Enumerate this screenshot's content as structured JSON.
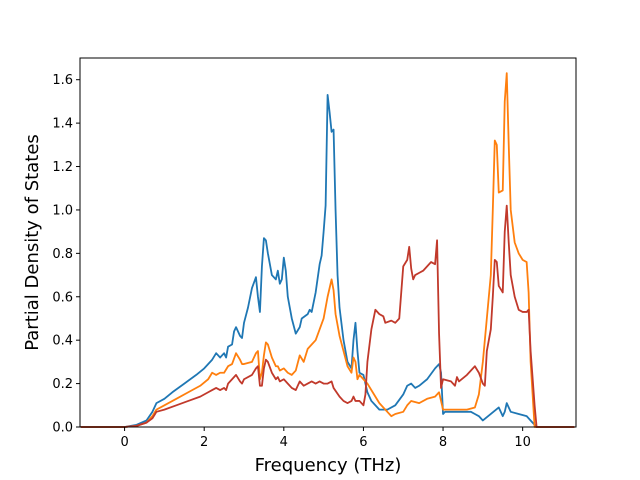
{
  "chart_data": {
    "type": "line",
    "title": "",
    "xlabel": "Frequency (THz)",
    "ylabel": "Partial Density of States",
    "xlim": [
      -1.12,
      11.34
    ],
    "ylim": [
      0.0,
      1.7
    ],
    "xticks": [
      0,
      2,
      4,
      6,
      8,
      10
    ],
    "yticks": [
      0.0,
      0.2,
      0.4,
      0.6,
      0.8,
      1.0,
      1.2,
      1.4,
      1.6
    ],
    "xtick_labels": [
      "0",
      "2",
      "4",
      "6",
      "8",
      "10"
    ],
    "ytick_labels": [
      "0.0",
      "0.2",
      "0.4",
      "0.6",
      "0.8",
      "1.0",
      "1.2",
      "1.4",
      "1.6"
    ],
    "grid": false,
    "legend": "none",
    "series": [
      {
        "color": "#1f77b4",
        "points": [
          [
            -1.1,
            0
          ],
          [
            0,
            0
          ],
          [
            0.3,
            0.01
          ],
          [
            0.55,
            0.03
          ],
          [
            0.7,
            0.07
          ],
          [
            0.8,
            0.11
          ],
          [
            1.0,
            0.13
          ],
          [
            1.2,
            0.16
          ],
          [
            1.5,
            0.2
          ],
          [
            1.8,
            0.24
          ],
          [
            2.0,
            0.27
          ],
          [
            2.2,
            0.31
          ],
          [
            2.3,
            0.34
          ],
          [
            2.4,
            0.32
          ],
          [
            2.5,
            0.34
          ],
          [
            2.55,
            0.32
          ],
          [
            2.6,
            0.37
          ],
          [
            2.7,
            0.38
          ],
          [
            2.75,
            0.44
          ],
          [
            2.8,
            0.46
          ],
          [
            2.9,
            0.42
          ],
          [
            2.95,
            0.41
          ],
          [
            3.0,
            0.48
          ],
          [
            3.1,
            0.55
          ],
          [
            3.2,
            0.64
          ],
          [
            3.3,
            0.69
          ],
          [
            3.35,
            0.6
          ],
          [
            3.4,
            0.53
          ],
          [
            3.45,
            0.74
          ],
          [
            3.5,
            0.87
          ],
          [
            3.55,
            0.86
          ],
          [
            3.6,
            0.8
          ],
          [
            3.7,
            0.7
          ],
          [
            3.8,
            0.68
          ],
          [
            3.85,
            0.72
          ],
          [
            3.9,
            0.66
          ],
          [
            3.95,
            0.68
          ],
          [
            4.0,
            0.78
          ],
          [
            4.05,
            0.72
          ],
          [
            4.1,
            0.6
          ],
          [
            4.2,
            0.5
          ],
          [
            4.3,
            0.43
          ],
          [
            4.4,
            0.46
          ],
          [
            4.45,
            0.5
          ],
          [
            4.6,
            0.52
          ],
          [
            4.65,
            0.54
          ],
          [
            4.7,
            0.53
          ],
          [
            4.8,
            0.62
          ],
          [
            4.9,
            0.75
          ],
          [
            4.95,
            0.79
          ],
          [
            5.0,
            0.9
          ],
          [
            5.05,
            1.02
          ],
          [
            5.1,
            1.53
          ],
          [
            5.15,
            1.45
          ],
          [
            5.2,
            1.36
          ],
          [
            5.25,
            1.37
          ],
          [
            5.3,
            1.0
          ],
          [
            5.35,
            0.7
          ],
          [
            5.4,
            0.55
          ],
          [
            5.5,
            0.4
          ],
          [
            5.6,
            0.3
          ],
          [
            5.7,
            0.27
          ],
          [
            5.75,
            0.4
          ],
          [
            5.8,
            0.48
          ],
          [
            5.85,
            0.35
          ],
          [
            5.9,
            0.25
          ],
          [
            6.0,
            0.24
          ],
          [
            6.1,
            0.16
          ],
          [
            6.2,
            0.12
          ],
          [
            6.3,
            0.1
          ],
          [
            6.4,
            0.08
          ],
          [
            6.6,
            0.08
          ],
          [
            6.8,
            0.1
          ],
          [
            7.0,
            0.15
          ],
          [
            7.1,
            0.19
          ],
          [
            7.2,
            0.2
          ],
          [
            7.3,
            0.18
          ],
          [
            7.4,
            0.19
          ],
          [
            7.6,
            0.22
          ],
          [
            7.8,
            0.27
          ],
          [
            7.9,
            0.29
          ],
          [
            7.95,
            0.25
          ],
          [
            8.0,
            0.06
          ],
          [
            8.05,
            0.07
          ],
          [
            8.2,
            0.07
          ],
          [
            8.5,
            0.07
          ],
          [
            8.7,
            0.07
          ],
          [
            8.8,
            0.06
          ],
          [
            8.9,
            0.05
          ],
          [
            9.0,
            0.03
          ],
          [
            9.2,
            0.06
          ],
          [
            9.4,
            0.09
          ],
          [
            9.5,
            0.05
          ],
          [
            9.55,
            0.07
          ],
          [
            9.6,
            0.11
          ],
          [
            9.7,
            0.07
          ],
          [
            9.9,
            0.06
          ],
          [
            10.1,
            0.05
          ],
          [
            10.2,
            0.03
          ],
          [
            10.35,
            0
          ],
          [
            11.3,
            0
          ]
        ]
      },
      {
        "color": "#ff7f0e",
        "points": [
          [
            -1.1,
            0
          ],
          [
            0,
            0
          ],
          [
            0.3,
            0.005
          ],
          [
            0.55,
            0.02
          ],
          [
            0.7,
            0.05
          ],
          [
            0.8,
            0.08
          ],
          [
            1.0,
            0.1
          ],
          [
            1.3,
            0.13
          ],
          [
            1.6,
            0.16
          ],
          [
            1.9,
            0.19
          ],
          [
            2.1,
            0.22
          ],
          [
            2.2,
            0.25
          ],
          [
            2.3,
            0.24
          ],
          [
            2.4,
            0.25
          ],
          [
            2.5,
            0.25
          ],
          [
            2.6,
            0.28
          ],
          [
            2.7,
            0.29
          ],
          [
            2.8,
            0.34
          ],
          [
            2.9,
            0.31
          ],
          [
            2.95,
            0.29
          ],
          [
            3.0,
            0.29
          ],
          [
            3.2,
            0.3
          ],
          [
            3.3,
            0.34
          ],
          [
            3.35,
            0.35
          ],
          [
            3.4,
            0.22
          ],
          [
            3.45,
            0.25
          ],
          [
            3.5,
            0.33
          ],
          [
            3.55,
            0.39
          ],
          [
            3.6,
            0.38
          ],
          [
            3.7,
            0.32
          ],
          [
            3.8,
            0.28
          ],
          [
            3.85,
            0.28
          ],
          [
            3.9,
            0.26
          ],
          [
            4.0,
            0.27
          ],
          [
            4.1,
            0.25
          ],
          [
            4.2,
            0.24
          ],
          [
            4.3,
            0.26
          ],
          [
            4.4,
            0.33
          ],
          [
            4.5,
            0.3
          ],
          [
            4.6,
            0.36
          ],
          [
            4.7,
            0.38
          ],
          [
            4.8,
            0.4
          ],
          [
            4.9,
            0.45
          ],
          [
            5.0,
            0.5
          ],
          [
            5.1,
            0.6
          ],
          [
            5.2,
            0.68
          ],
          [
            5.25,
            0.63
          ],
          [
            5.3,
            0.52
          ],
          [
            5.4,
            0.42
          ],
          [
            5.5,
            0.35
          ],
          [
            5.6,
            0.28
          ],
          [
            5.7,
            0.25
          ],
          [
            5.75,
            0.32
          ],
          [
            5.8,
            0.3
          ],
          [
            5.85,
            0.22
          ],
          [
            5.9,
            0.24
          ],
          [
            6.0,
            0.22
          ],
          [
            6.1,
            0.2
          ],
          [
            6.2,
            0.17
          ],
          [
            6.3,
            0.14
          ],
          [
            6.4,
            0.11
          ],
          [
            6.5,
            0.09
          ],
          [
            6.6,
            0.07
          ],
          [
            6.7,
            0.05
          ],
          [
            6.8,
            0.06
          ],
          [
            7.0,
            0.07
          ],
          [
            7.1,
            0.1
          ],
          [
            7.2,
            0.12
          ],
          [
            7.4,
            0.11
          ],
          [
            7.6,
            0.13
          ],
          [
            7.8,
            0.14
          ],
          [
            7.9,
            0.16
          ],
          [
            7.95,
            0.12
          ],
          [
            8.0,
            0.08
          ],
          [
            8.2,
            0.08
          ],
          [
            8.4,
            0.08
          ],
          [
            8.6,
            0.08
          ],
          [
            8.8,
            0.09
          ],
          [
            8.9,
            0.15
          ],
          [
            9.0,
            0.3
          ],
          [
            9.1,
            0.5
          ],
          [
            9.2,
            0.7
          ],
          [
            9.25,
            1.0
          ],
          [
            9.3,
            1.32
          ],
          [
            9.35,
            1.3
          ],
          [
            9.4,
            1.08
          ],
          [
            9.5,
            1.09
          ],
          [
            9.55,
            1.5
          ],
          [
            9.6,
            1.63
          ],
          [
            9.65,
            1.3
          ],
          [
            9.7,
            1.0
          ],
          [
            9.8,
            0.85
          ],
          [
            9.9,
            0.8
          ],
          [
            10.0,
            0.77
          ],
          [
            10.1,
            0.76
          ],
          [
            10.15,
            0.62
          ],
          [
            10.2,
            0.3
          ],
          [
            10.3,
            0
          ],
          [
            11.3,
            0
          ]
        ]
      },
      {
        "color": "#c1392b",
        "points": [
          [
            -1.1,
            0
          ],
          [
            0,
            0
          ],
          [
            0.3,
            0.005
          ],
          [
            0.55,
            0.02
          ],
          [
            0.7,
            0.04
          ],
          [
            0.8,
            0.07
          ],
          [
            1.0,
            0.08
          ],
          [
            1.3,
            0.1
          ],
          [
            1.6,
            0.12
          ],
          [
            1.9,
            0.14
          ],
          [
            2.1,
            0.16
          ],
          [
            2.2,
            0.17
          ],
          [
            2.3,
            0.18
          ],
          [
            2.4,
            0.17
          ],
          [
            2.5,
            0.18
          ],
          [
            2.55,
            0.17
          ],
          [
            2.6,
            0.2
          ],
          [
            2.7,
            0.22
          ],
          [
            2.8,
            0.24
          ],
          [
            2.9,
            0.21
          ],
          [
            2.95,
            0.2
          ],
          [
            3.0,
            0.22
          ],
          [
            3.2,
            0.24
          ],
          [
            3.3,
            0.27
          ],
          [
            3.35,
            0.28
          ],
          [
            3.4,
            0.19
          ],
          [
            3.45,
            0.19
          ],
          [
            3.5,
            0.27
          ],
          [
            3.55,
            0.31
          ],
          [
            3.6,
            0.3
          ],
          [
            3.7,
            0.25
          ],
          [
            3.8,
            0.22
          ],
          [
            3.85,
            0.23
          ],
          [
            3.9,
            0.21
          ],
          [
            4.0,
            0.22
          ],
          [
            4.1,
            0.2
          ],
          [
            4.2,
            0.18
          ],
          [
            4.3,
            0.17
          ],
          [
            4.4,
            0.21
          ],
          [
            4.5,
            0.19
          ],
          [
            4.6,
            0.2
          ],
          [
            4.7,
            0.21
          ],
          [
            4.8,
            0.2
          ],
          [
            4.9,
            0.21
          ],
          [
            5.0,
            0.2
          ],
          [
            5.1,
            0.2
          ],
          [
            5.2,
            0.21
          ],
          [
            5.25,
            0.18
          ],
          [
            5.4,
            0.14
          ],
          [
            5.5,
            0.12
          ],
          [
            5.6,
            0.11
          ],
          [
            5.7,
            0.12
          ],
          [
            5.75,
            0.14
          ],
          [
            5.8,
            0.12
          ],
          [
            5.9,
            0.12
          ],
          [
            6.0,
            0.1
          ],
          [
            6.05,
            0.15
          ],
          [
            6.1,
            0.3
          ],
          [
            6.2,
            0.45
          ],
          [
            6.3,
            0.54
          ],
          [
            6.4,
            0.52
          ],
          [
            6.5,
            0.51
          ],
          [
            6.55,
            0.48
          ],
          [
            6.7,
            0.49
          ],
          [
            6.8,
            0.48
          ],
          [
            6.9,
            0.5
          ],
          [
            7.0,
            0.74
          ],
          [
            7.1,
            0.77
          ],
          [
            7.15,
            0.83
          ],
          [
            7.2,
            0.73
          ],
          [
            7.25,
            0.68
          ],
          [
            7.3,
            0.7
          ],
          [
            7.4,
            0.71
          ],
          [
            7.5,
            0.72
          ],
          [
            7.6,
            0.74
          ],
          [
            7.7,
            0.76
          ],
          [
            7.8,
            0.75
          ],
          [
            7.85,
            0.86
          ],
          [
            7.9,
            0.43
          ],
          [
            7.95,
            0.18
          ],
          [
            8.0,
            0.22
          ],
          [
            8.2,
            0.21
          ],
          [
            8.3,
            0.19
          ],
          [
            8.35,
            0.23
          ],
          [
            8.4,
            0.21
          ],
          [
            8.6,
            0.24
          ],
          [
            8.75,
            0.27
          ],
          [
            8.8,
            0.28
          ],
          [
            8.9,
            0.25
          ],
          [
            9.0,
            0.2
          ],
          [
            9.05,
            0.19
          ],
          [
            9.1,
            0.35
          ],
          [
            9.2,
            0.45
          ],
          [
            9.25,
            0.6
          ],
          [
            9.3,
            0.77
          ],
          [
            9.35,
            0.76
          ],
          [
            9.4,
            0.65
          ],
          [
            9.5,
            0.62
          ],
          [
            9.55,
            0.9
          ],
          [
            9.6,
            1.02
          ],
          [
            9.65,
            0.85
          ],
          [
            9.7,
            0.7
          ],
          [
            9.8,
            0.6
          ],
          [
            9.9,
            0.54
          ],
          [
            10.0,
            0.53
          ],
          [
            10.1,
            0.53
          ],
          [
            10.15,
            0.54
          ],
          [
            10.2,
            0.35
          ],
          [
            10.3,
            0.1
          ],
          [
            10.35,
            0
          ],
          [
            11.3,
            0
          ]
        ]
      }
    ]
  }
}
